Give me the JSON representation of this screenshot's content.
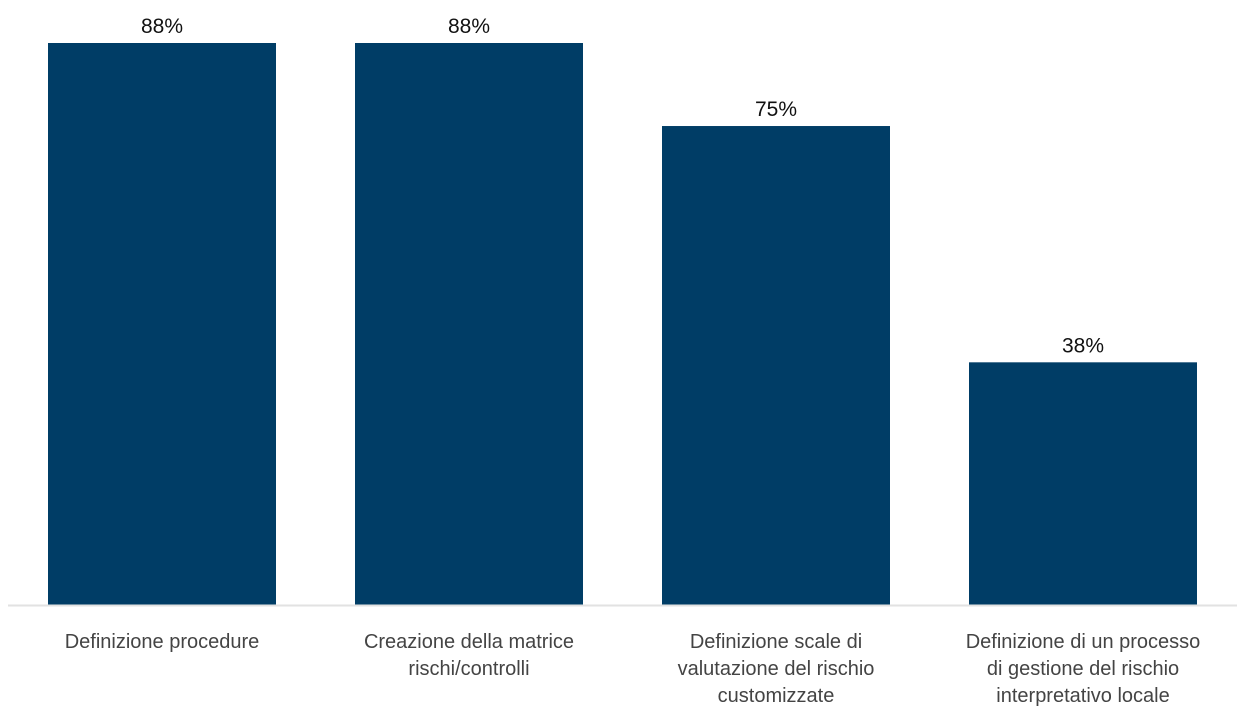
{
  "chart_data": {
    "type": "bar",
    "categories": [
      [
        "Definizione procedure"
      ],
      [
        "Creazione della matrice",
        "rischi/controlli"
      ],
      [
        "Definizione scale di",
        "valutazione del rischio",
        "customizzate"
      ],
      [
        "Definizione di un processo",
        "di gestione del rischio",
        "interpretativo locale"
      ]
    ],
    "values": [
      88,
      88,
      75,
      38
    ],
    "value_labels": [
      "88%",
      "88%",
      "75%",
      "38%"
    ],
    "ylim": [
      0,
      88
    ],
    "grid": false,
    "legend": "none",
    "colors": {
      "bar": "#003D66",
      "axis": "#E2E2E2",
      "value_text": "#111111",
      "category_text": "#444444"
    }
  }
}
